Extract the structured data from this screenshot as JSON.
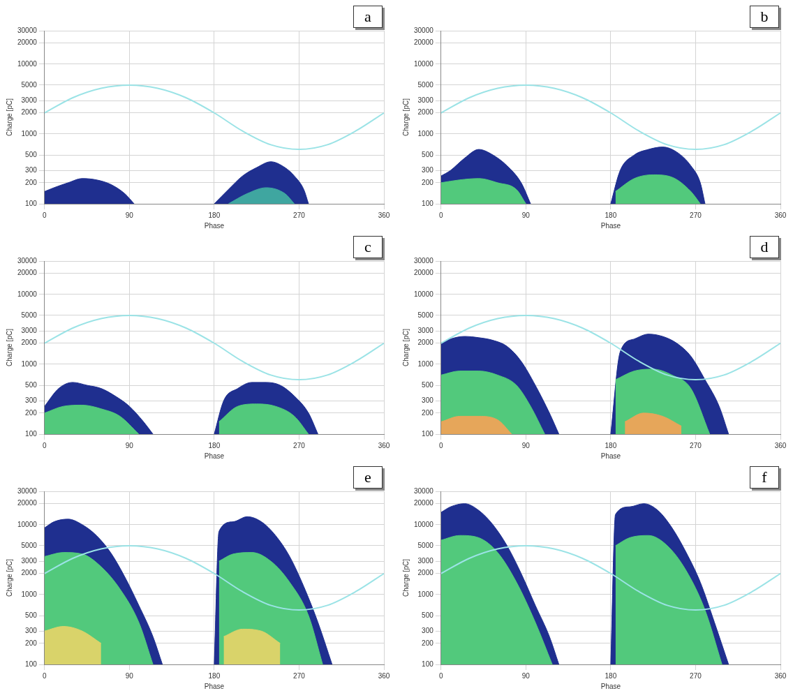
{
  "chart_data": [
    {
      "type": "scatter",
      "panel": "a",
      "x_label": "Phase",
      "y_label": "Charge [pC]",
      "log": "y",
      "grid": true,
      "xlim": [
        0,
        360
      ],
      "xticks": [
        0,
        90,
        180,
        270,
        360
      ],
      "ylim": [
        100,
        30000
      ],
      "yticks": [
        100,
        200,
        300,
        500,
        1000,
        2000,
        3000,
        5000,
        10000,
        20000,
        30000
      ],
      "series": [
        {
          "type": "area",
          "color": "#1f2f8f",
          "x": [
            0,
            10,
            25,
            40,
            55,
            70,
            85,
            95
          ],
          "values": [
            150,
            170,
            200,
            230,
            220,
            190,
            140,
            100
          ]
        },
        {
          "type": "area",
          "color": "#1f2f8f",
          "x": [
            180,
            195,
            210,
            225,
            240,
            255,
            265,
            275,
            280
          ],
          "values": [
            100,
            160,
            250,
            330,
            400,
            330,
            250,
            160,
            100
          ]
        },
        {
          "type": "area",
          "color": "#3fa6a0",
          "x": [
            195,
            215,
            235,
            255,
            265
          ],
          "values": [
            100,
            140,
            170,
            140,
            100
          ]
        },
        {
          "type": "line",
          "color": "#9be3e6",
          "x": [
            0,
            30,
            60,
            90,
            120,
            150,
            180,
            210,
            240,
            270,
            300,
            330,
            360
          ],
          "values": [
            2000,
            3300,
            4500,
            5000,
            4500,
            3300,
            2000,
            1100,
            700,
            600,
            700,
            1100,
            2000
          ]
        }
      ]
    },
    {
      "type": "scatter",
      "panel": "b",
      "x_label": "Phase",
      "y_label": "Charge [pC]",
      "log": "y",
      "grid": true,
      "xlim": [
        0,
        360
      ],
      "xticks": [
        0,
        90,
        180,
        270,
        360
      ],
      "ylim": [
        100,
        30000
      ],
      "yticks": [
        100,
        200,
        300,
        500,
        1000,
        2000,
        3000,
        5000,
        10000,
        20000,
        30000
      ],
      "series": [
        {
          "type": "area",
          "color": "#1f2f8f",
          "x": [
            0,
            10,
            25,
            40,
            55,
            70,
            85,
            95
          ],
          "values": [
            250,
            300,
            450,
            600,
            500,
            350,
            200,
            100
          ]
        },
        {
          "type": "area",
          "color": "#1f2f8f",
          "x": [
            180,
            190,
            205,
            220,
            235,
            250,
            265,
            275,
            280
          ],
          "values": [
            100,
            300,
            500,
            600,
            650,
            550,
            350,
            200,
            100
          ]
        },
        {
          "type": "area",
          "color": "#52c97c",
          "x": [
            0,
            20,
            40,
            60,
            80,
            90
          ],
          "values": [
            200,
            220,
            230,
            200,
            160,
            100
          ]
        },
        {
          "type": "area",
          "color": "#52c97c",
          "x": [
            185,
            205,
            225,
            245,
            265,
            275
          ],
          "values": [
            150,
            230,
            260,
            240,
            150,
            100
          ]
        },
        {
          "type": "line",
          "color": "#9be3e6",
          "x": [
            0,
            30,
            60,
            90,
            120,
            150,
            180,
            210,
            240,
            270,
            300,
            330,
            360
          ],
          "values": [
            2000,
            3300,
            4500,
            5000,
            4500,
            3300,
            2000,
            1100,
            700,
            600,
            700,
            1100,
            2000
          ]
        }
      ]
    },
    {
      "type": "scatter",
      "panel": "c",
      "x_label": "Phase",
      "y_label": "Charge [pC]",
      "log": "y",
      "grid": true,
      "xlim": [
        0,
        360
      ],
      "xticks": [
        0,
        90,
        180,
        270,
        360
      ],
      "ylim": [
        100,
        30000
      ],
      "yticks": [
        100,
        200,
        300,
        500,
        1000,
        2000,
        3000,
        5000,
        10000,
        20000,
        30000
      ],
      "series": [
        {
          "type": "area",
          "color": "#1f2f8f",
          "x": [
            0,
            15,
            30,
            45,
            60,
            75,
            90,
            105,
            115
          ],
          "values": [
            250,
            450,
            550,
            500,
            450,
            350,
            250,
            150,
            100
          ]
        },
        {
          "type": "area",
          "color": "#1f2f8f",
          "x": [
            180,
            190,
            205,
            220,
            235,
            250,
            265,
            280,
            290
          ],
          "values": [
            100,
            300,
            450,
            550,
            550,
            500,
            350,
            200,
            100
          ]
        },
        {
          "type": "area",
          "color": "#52c97c",
          "x": [
            0,
            20,
            40,
            60,
            80,
            100
          ],
          "values": [
            200,
            250,
            260,
            230,
            180,
            100
          ]
        },
        {
          "type": "area",
          "color": "#52c97c",
          "x": [
            185,
            205,
            225,
            245,
            265,
            280
          ],
          "values": [
            150,
            250,
            270,
            250,
            180,
            100
          ]
        },
        {
          "type": "line",
          "color": "#9be3e6",
          "x": [
            0,
            30,
            60,
            90,
            120,
            150,
            180,
            210,
            240,
            270,
            300,
            330,
            360
          ],
          "values": [
            2000,
            3300,
            4500,
            5000,
            4500,
            3300,
            2000,
            1100,
            700,
            600,
            700,
            1100,
            2000
          ]
        }
      ]
    },
    {
      "type": "scatter",
      "panel": "d",
      "x_label": "Phase",
      "y_label": "Charge [pC]",
      "log": "y",
      "grid": true,
      "xlim": [
        0,
        360
      ],
      "xticks": [
        0,
        90,
        180,
        270,
        360
      ],
      "ylim": [
        100,
        30000
      ],
      "yticks": [
        100,
        200,
        300,
        500,
        1000,
        2000,
        3000,
        5000,
        10000,
        20000,
        30000
      ],
      "series": [
        {
          "type": "area",
          "color": "#1f2f8f",
          "x": [
            0,
            10,
            25,
            40,
            55,
            70,
            85,
            100,
            115,
            125
          ],
          "values": [
            2000,
            2300,
            2500,
            2400,
            2200,
            1800,
            1100,
            500,
            200,
            100
          ]
        },
        {
          "type": "area",
          "color": "#1f2f8f",
          "x": [
            180,
            190,
            205,
            220,
            235,
            250,
            265,
            280,
            295,
            305
          ],
          "values": [
            100,
            1500,
            2300,
            2700,
            2500,
            2000,
            1300,
            600,
            250,
            100
          ]
        },
        {
          "type": "area",
          "color": "#52c97c",
          "x": [
            0,
            20,
            40,
            60,
            80,
            95,
            110
          ],
          "values": [
            700,
            800,
            800,
            700,
            500,
            250,
            100
          ]
        },
        {
          "type": "area",
          "color": "#52c97c",
          "x": [
            185,
            205,
            225,
            245,
            265,
            285
          ],
          "values": [
            600,
            800,
            850,
            700,
            450,
            100
          ]
        },
        {
          "type": "area",
          "color": "#e6a65a",
          "x": [
            0,
            20,
            40,
            60,
            75
          ],
          "values": [
            150,
            180,
            180,
            160,
            100
          ]
        },
        {
          "type": "area",
          "color": "#e6a65a",
          "x": [
            195,
            215,
            235,
            255
          ],
          "values": [
            150,
            200,
            180,
            130
          ]
        },
        {
          "type": "line",
          "color": "#9be3e6",
          "x": [
            0,
            30,
            60,
            90,
            120,
            150,
            180,
            210,
            240,
            270,
            300,
            330,
            360
          ],
          "values": [
            2000,
            3300,
            4500,
            5000,
            4500,
            3300,
            2000,
            1100,
            700,
            600,
            700,
            1100,
            2000
          ]
        }
      ]
    },
    {
      "type": "scatter",
      "panel": "e",
      "x_label": "Phase",
      "y_label": "Charge [pC]",
      "log": "y",
      "grid": true,
      "xlim": [
        0,
        360
      ],
      "xticks": [
        0,
        90,
        180,
        270,
        360
      ],
      "ylim": [
        100,
        30000
      ],
      "yticks": [
        100,
        200,
        300,
        500,
        1000,
        2000,
        3000,
        5000,
        10000,
        20000,
        30000
      ],
      "series": [
        {
          "type": "area",
          "color": "#1f2f8f",
          "x": [
            0,
            10,
            25,
            40,
            55,
            70,
            85,
            100,
            115,
            125
          ],
          "values": [
            9000,
            11000,
            12000,
            10000,
            7000,
            4000,
            1800,
            700,
            250,
            100
          ]
        },
        {
          "type": "area",
          "color": "#1f2f8f",
          "x": [
            180,
            185,
            200,
            215,
            230,
            245,
            260,
            275,
            290,
            305
          ],
          "values": [
            100,
            8000,
            11000,
            13000,
            11000,
            7000,
            3500,
            1300,
            400,
            100
          ]
        },
        {
          "type": "area",
          "color": "#52c97c",
          "x": [
            0,
            20,
            40,
            60,
            80,
            100,
            115
          ],
          "values": [
            3500,
            4000,
            3800,
            2500,
            1200,
            400,
            100
          ]
        },
        {
          "type": "area",
          "color": "#52c97c",
          "x": [
            185,
            200,
            220,
            240,
            260,
            280,
            295
          ],
          "values": [
            3000,
            3800,
            4000,
            3000,
            1500,
            500,
            100
          ]
        },
        {
          "type": "area",
          "color": "#d9d36a",
          "x": [
            0,
            20,
            40,
            60
          ],
          "values": [
            300,
            350,
            300,
            200
          ]
        },
        {
          "type": "area",
          "color": "#d9d36a",
          "x": [
            190,
            210,
            230,
            250
          ],
          "values": [
            250,
            320,
            300,
            200
          ]
        },
        {
          "type": "line",
          "color": "#9be3e6",
          "x": [
            0,
            30,
            60,
            90,
            120,
            150,
            180,
            210,
            240,
            270,
            300,
            330,
            360
          ],
          "values": [
            2000,
            3300,
            4500,
            5000,
            4500,
            3300,
            2000,
            1100,
            700,
            600,
            700,
            1100,
            2000
          ]
        }
      ]
    },
    {
      "type": "scatter",
      "panel": "f",
      "x_label": "Phase",
      "y_label": "Charge [pC]",
      "log": "y",
      "grid": true,
      "xlim": [
        0,
        360
      ],
      "xticks": [
        0,
        90,
        180,
        270,
        360
      ],
      "ylim": [
        100,
        30000
      ],
      "yticks": [
        100,
        200,
        300,
        500,
        1000,
        2000,
        3000,
        5000,
        10000,
        20000,
        30000
      ],
      "series": [
        {
          "type": "area",
          "color": "#1f2f8f",
          "x": [
            0,
            10,
            25,
            40,
            55,
            70,
            85,
            100,
            115,
            125
          ],
          "values": [
            15000,
            18000,
            20000,
            16000,
            10000,
            5000,
            2000,
            700,
            250,
            100
          ]
        },
        {
          "type": "area",
          "color": "#1f2f8f",
          "x": [
            180,
            185,
            200,
            215,
            230,
            245,
            260,
            275,
            290,
            305
          ],
          "values": [
            100,
            14000,
            18000,
            20000,
            16000,
            9000,
            4000,
            1500,
            400,
            100
          ]
        },
        {
          "type": "area",
          "color": "#52c97c",
          "x": [
            0,
            20,
            40,
            60,
            80,
            100,
            118
          ],
          "values": [
            6000,
            7000,
            6500,
            4000,
            1500,
            400,
            100
          ]
        },
        {
          "type": "area",
          "color": "#52c97c",
          "x": [
            185,
            200,
            220,
            240,
            260,
            280,
            298
          ],
          "values": [
            5000,
            6500,
            7000,
            5000,
            2200,
            600,
            100
          ]
        },
        {
          "type": "line",
          "color": "#9be3e6",
          "x": [
            0,
            30,
            60,
            90,
            120,
            150,
            180,
            210,
            240,
            270,
            300,
            330,
            360
          ],
          "values": [
            2000,
            3300,
            4500,
            5000,
            4500,
            3300,
            2000,
            1100,
            700,
            600,
            700,
            1100,
            2000
          ]
        }
      ]
    }
  ]
}
